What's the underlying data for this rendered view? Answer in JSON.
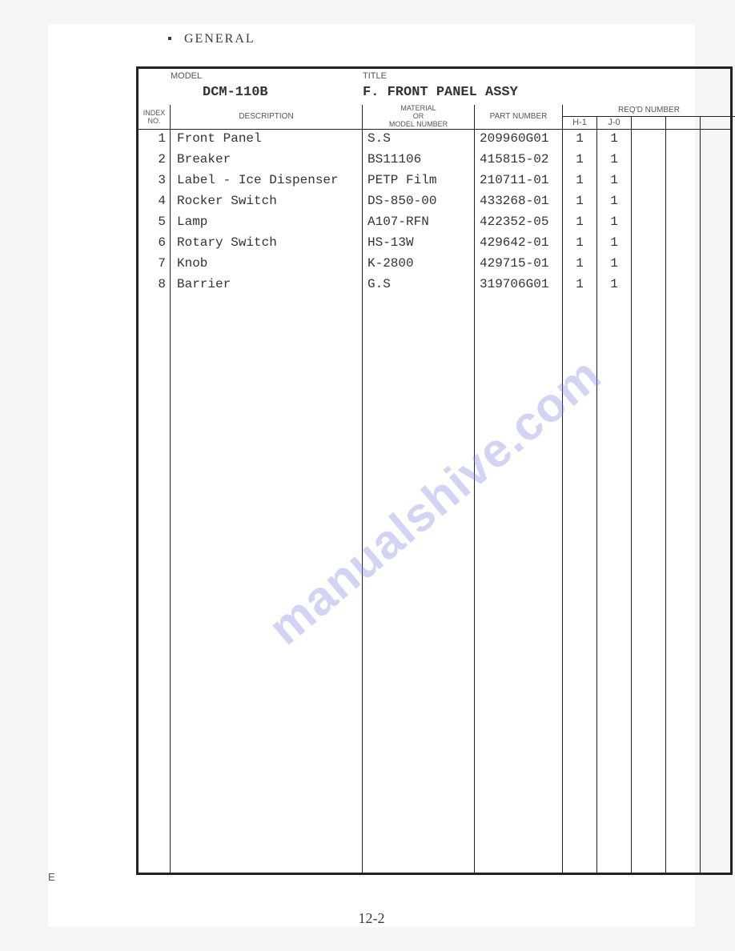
{
  "section_label": "GENERAL",
  "revision_label": "E",
  "page_number": "12-2",
  "watermark": "manualshive.com",
  "header": {
    "model_label": "MODEL",
    "title_label": "TITLE",
    "model_value": "DCM-110B",
    "title_value": "F. FRONT PANEL ASSY"
  },
  "columns": {
    "index": "INDEX\nNO.",
    "description": "DESCRIPTION",
    "material_line1": "MATERIAL",
    "material_line2": "OR",
    "material_line3": "MODEL  NUMBER",
    "partnum": "PART NUMBER",
    "reqd": "REQ'D  NUMBER",
    "h1": "H-1",
    "j0": "J-0"
  },
  "rows": [
    {
      "index": "1",
      "description": "Front Panel",
      "material": "S.S",
      "partnum": "209960G01",
      "h1": "1",
      "j0": "1"
    },
    {
      "index": "2",
      "description": "Breaker",
      "material": "BS11106",
      "partnum": "415815-02",
      "h1": "1",
      "j0": "1"
    },
    {
      "index": "3",
      "description": "Label - Ice Dispenser",
      "material": "PETP Film",
      "partnum": "210711-01",
      "h1": "1",
      "j0": "1"
    },
    {
      "index": "4",
      "description": "Rocker Switch",
      "material": "DS-850-00",
      "partnum": "433268-01",
      "h1": "1",
      "j0": "1"
    },
    {
      "index": "5",
      "description": "Lamp",
      "material": "A107-RFN",
      "partnum": "422352-05",
      "h1": "1",
      "j0": "1"
    },
    {
      "index": "6",
      "description": "Rotary Switch",
      "material": "HS-13W",
      "partnum": "429642-01",
      "h1": "1",
      "j0": "1"
    },
    {
      "index": "7",
      "description": "Knob",
      "material": "K-2800",
      "partnum": "429715-01",
      "h1": "1",
      "j0": "1"
    },
    {
      "index": "8",
      "description": "Barrier",
      "material": "G.S",
      "partnum": "319706G01",
      "h1": "1",
      "j0": "1"
    }
  ]
}
